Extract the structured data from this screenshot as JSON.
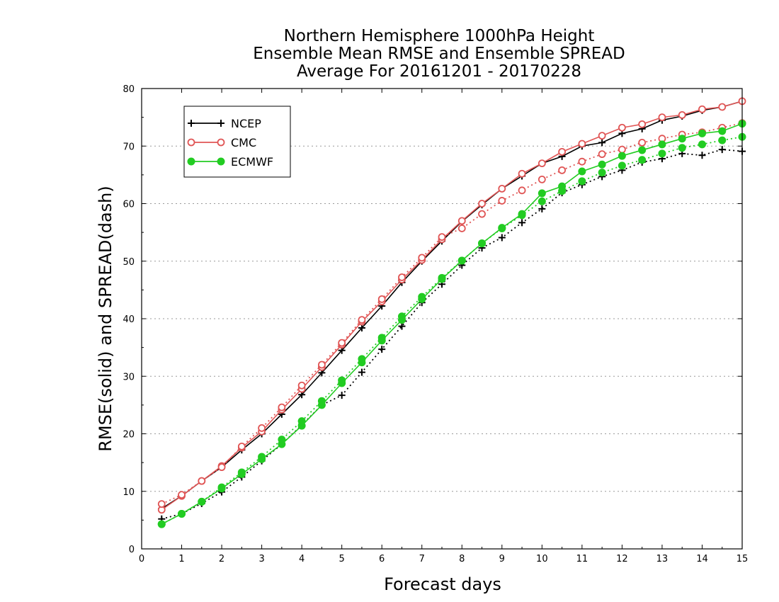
{
  "chart_data": {
    "type": "line",
    "title_lines": [
      "Northern Hemisphere 1000hPa Height",
      "Ensemble Mean RMSE and Ensemble SPREAD",
      "Average For 20161201 - 20170228"
    ],
    "xlabel": "Forecast days",
    "ylabel": "RMSE(solid) and SPREAD(dash)",
    "xlim": [
      0,
      15
    ],
    "ylim": [
      0,
      80
    ],
    "x_ticks": [
      "0",
      "1",
      "2",
      "3",
      "4",
      "5",
      "6",
      "7",
      "8",
      "9",
      "10",
      "11",
      "12",
      "13",
      "14",
      "15"
    ],
    "y_ticks": [
      "0",
      "10",
      "20",
      "30",
      "40",
      "50",
      "60",
      "70",
      "80"
    ],
    "grid": "horizontal dotted",
    "legend_position": "top-left",
    "legend": [
      "NCEP",
      "CMC",
      "ECMWF"
    ],
    "x": [
      0.5,
      1,
      1.5,
      2,
      2.5,
      3,
      3.5,
      4,
      4.5,
      5,
      5.5,
      6,
      6.5,
      7,
      7.5,
      8,
      8.5,
      9,
      9.5,
      10,
      10.5,
      11,
      11.5,
      12,
      12.5,
      13,
      13.5,
      14,
      14.5,
      15
    ],
    "series": [
      {
        "name": "NCEP",
        "kind": "RMSE",
        "style": "solid",
        "marker": "plus",
        "color": "#000000",
        "values": [
          7.0,
          9.2,
          11.8,
          14.2,
          17.2,
          20.0,
          23.4,
          26.8,
          30.6,
          34.5,
          38.4,
          42.2,
          46.3,
          50.0,
          53.5,
          56.9,
          59.8,
          62.6,
          64.8,
          67.0,
          68.2,
          70.0,
          70.6,
          72.2,
          73.0,
          74.5,
          75.2,
          76.2,
          76.8,
          77.8
        ]
      },
      {
        "name": "NCEP",
        "kind": "SPREAD",
        "style": "dotted",
        "marker": "plus",
        "color": "#000000",
        "values": [
          5.2,
          6.1,
          7.9,
          9.9,
          12.5,
          15.3,
          18.2,
          21.5,
          25.0,
          26.7,
          30.7,
          34.7,
          38.7,
          42.8,
          46.0,
          49.3,
          52.3,
          54.1,
          56.7,
          59.1,
          61.9,
          63.3,
          64.7,
          65.8,
          67.2,
          67.8,
          68.7,
          68.4,
          69.4,
          69.1
        ]
      },
      {
        "name": "CMC",
        "kind": "RMSE",
        "style": "solid",
        "marker": "circle-open",
        "color": "#e05555",
        "values": [
          6.8,
          9.2,
          11.8,
          14.4,
          17.6,
          20.4,
          24.2,
          27.8,
          31.6,
          35.5,
          39.5,
          43.0,
          46.8,
          50.2,
          53.8,
          57.0,
          60.0,
          62.6,
          65.2,
          67.0,
          69.0,
          70.4,
          71.8,
          73.2,
          73.8,
          75.0,
          75.4,
          76.4,
          76.8,
          77.8
        ]
      },
      {
        "name": "CMC",
        "kind": "SPREAD",
        "style": "dotted",
        "marker": "circle-open",
        "color": "#e05555",
        "values": [
          7.8,
          9.4,
          11.8,
          14.2,
          17.8,
          21.0,
          24.6,
          28.4,
          32.0,
          35.8,
          39.8,
          43.4,
          47.2,
          50.6,
          54.2,
          55.7,
          58.2,
          60.5,
          62.3,
          64.2,
          65.8,
          67.3,
          68.6,
          69.4,
          70.6,
          71.3,
          72.0,
          72.4,
          73.2,
          74.0
        ]
      },
      {
        "name": "ECMWF",
        "kind": "RMSE",
        "style": "solid",
        "marker": "circle-filled",
        "color": "#22cc22",
        "values": [
          4.3,
          6.1,
          8.2,
          10.5,
          13.0,
          15.6,
          18.2,
          21.4,
          25.0,
          28.8,
          32.4,
          36.2,
          39.8,
          43.4,
          46.9,
          50.1,
          53.1,
          55.8,
          58.2,
          61.8,
          63.0,
          65.6,
          66.8,
          68.3,
          69.3,
          70.3,
          71.3,
          72.2,
          72.6,
          73.9
        ]
      },
      {
        "name": "ECMWF",
        "kind": "SPREAD",
        "style": "dotted",
        "marker": "circle-filled",
        "color": "#22cc22",
        "values": [
          4.3,
          6.1,
          8.2,
          10.7,
          13.3,
          16.0,
          19.0,
          22.2,
          25.7,
          29.3,
          33.0,
          36.7,
          40.4,
          43.8,
          47.1,
          50.1,
          53.1,
          55.7,
          58.0,
          60.4,
          62.2,
          63.9,
          65.4,
          66.6,
          67.6,
          68.7,
          69.7,
          70.3,
          71.0,
          71.6
        ]
      }
    ]
  }
}
